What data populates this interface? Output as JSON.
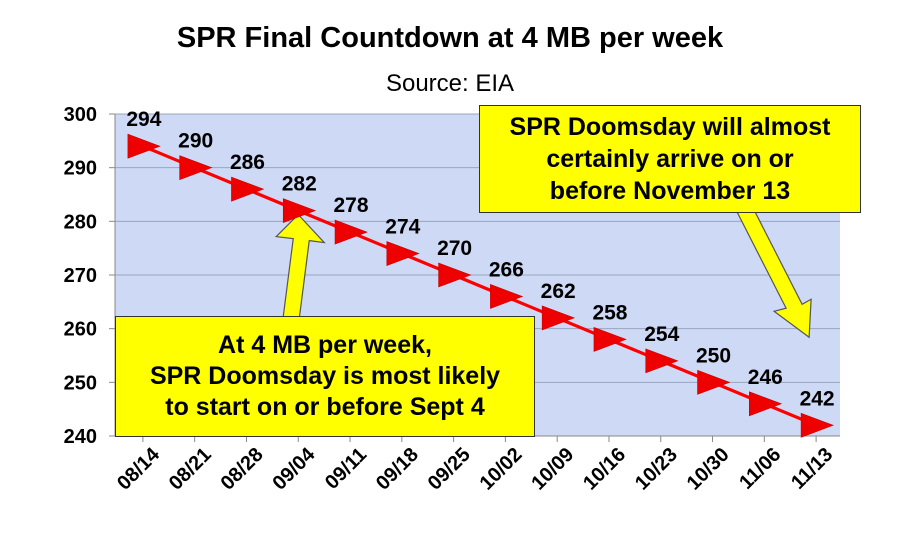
{
  "chart_data": {
    "type": "line",
    "title": "SPR Final Countdown at 4 MB per week",
    "subtitle": "Source: EIA",
    "xlabel": "",
    "ylabel": "",
    "categories": [
      "08/14",
      "08/21",
      "08/28",
      "09/04",
      "09/11",
      "09/18",
      "09/25",
      "10/02",
      "10/09",
      "10/16",
      "10/23",
      "10/30",
      "11/06",
      "11/13"
    ],
    "series": [
      {
        "values": [
          294,
          290,
          286,
          282,
          278,
          274,
          270,
          266,
          262,
          258,
          254,
          250,
          246,
          242
        ]
      }
    ],
    "data_labels": [
      "294",
      "290",
      "286",
      "282",
      "278",
      "274",
      "270",
      "266",
      "262",
      "258",
      "254",
      "250",
      "246",
      "242"
    ],
    "ylim": [
      240,
      300
    ],
    "yticks": [
      "240",
      "250",
      "260",
      "270",
      "280",
      "290",
      "300"
    ],
    "grid": true,
    "marker": "right-pointing triangle",
    "colors": {
      "line": "#ff0000",
      "marker": "#ee0000",
      "plot_background": "#cdd9f5",
      "grid": "#9aa6bf",
      "callout": "#ffff00"
    },
    "annotations": [
      {
        "id": "left",
        "text": "At 4 MB per week,\nSPR Doomsday is most likely\nto start on or before Sept 4",
        "points_to": "09/04"
      },
      {
        "id": "right",
        "text": "SPR Doomsday will almost\ncertainly arrive on or\nbefore November 13",
        "points_to": "11/13"
      }
    ]
  }
}
